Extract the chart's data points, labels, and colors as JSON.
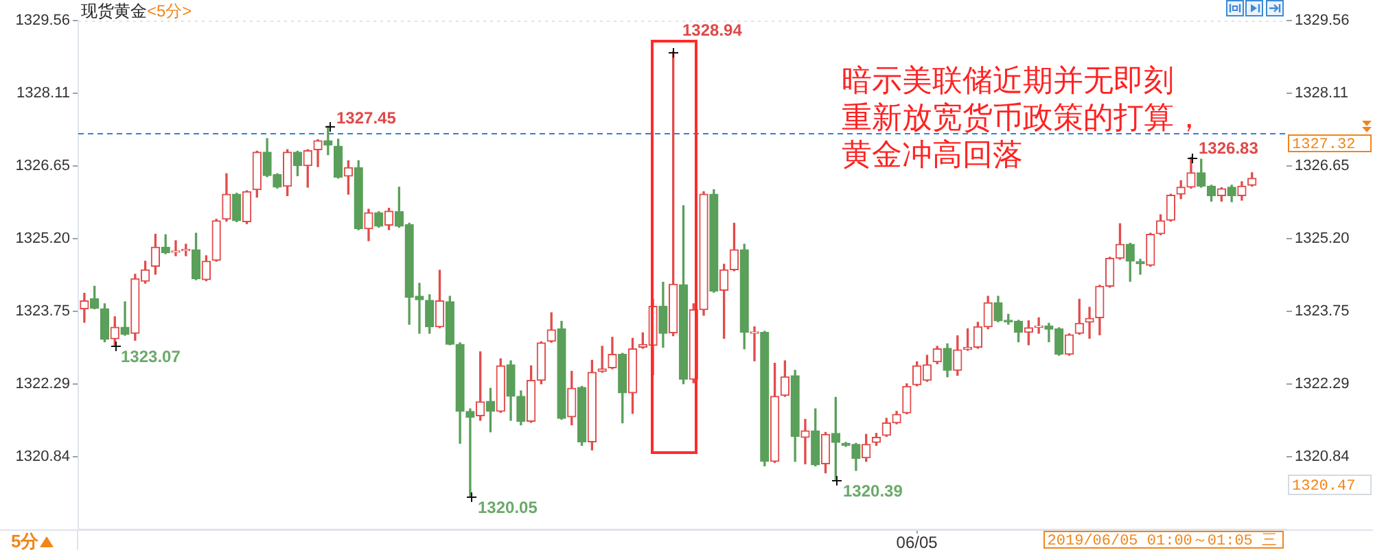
{
  "chart_data": {
    "type": "candlestick",
    "title": "现货黄金",
    "subtitle": "<5分>",
    "categories": [
      null,
      null,
      null,
      null,
      null,
      null,
      null,
      null,
      null,
      null,
      null,
      null,
      null,
      null,
      null,
      null,
      null,
      null,
      null,
      null,
      null,
      null,
      null,
      null,
      null,
      null,
      null,
      null,
      null,
      null,
      null,
      null,
      null,
      null,
      null,
      null,
      null,
      null,
      null,
      null,
      null,
      null,
      null,
      null,
      null,
      null,
      null,
      null,
      null,
      null,
      null,
      null,
      null,
      null,
      null,
      null,
      null,
      null,
      null,
      null,
      null,
      null,
      null,
      null,
      null,
      null,
      null,
      null,
      null,
      null,
      null,
      null,
      null,
      null,
      null,
      null,
      null,
      null,
      null,
      null,
      null,
      null,
      "06/05",
      null,
      null,
      null,
      null,
      null,
      null,
      null,
      null,
      null,
      null,
      null,
      null,
      null,
      null,
      null,
      null,
      null,
      null,
      null,
      null,
      null,
      null,
      null,
      null,
      null,
      null,
      null,
      null,
      null,
      null,
      null,
      null,
      null
    ],
    "ohlc": [
      [
        1323.8,
        1324.11,
        1323.53,
        1323.96
      ],
      [
        1324.0,
        1324.25,
        1323.8,
        1323.81
      ],
      [
        1323.8,
        1323.9,
        1323.14,
        1323.19
      ],
      [
        1323.2,
        1323.64,
        1323.07,
        1323.43
      ],
      [
        1323.43,
        1323.94,
        1323.27,
        1323.29
      ],
      [
        1323.31,
        1324.49,
        1323.17,
        1324.4
      ],
      [
        1324.35,
        1324.75,
        1324.31,
        1324.58
      ],
      [
        1324.65,
        1325.29,
        1324.49,
        1325.03
      ],
      [
        1325.03,
        1325.28,
        1324.9,
        1324.92
      ],
      [
        1324.93,
        1325.16,
        1324.86,
        1324.95
      ],
      [
        1324.96,
        1325.09,
        1324.86,
        1324.98
      ],
      [
        1324.98,
        1325.31,
        1324.38,
        1324.4
      ],
      [
        1324.38,
        1324.86,
        1324.36,
        1324.75
      ],
      [
        1324.77,
        1325.59,
        1324.75,
        1325.56
      ],
      [
        1325.59,
        1326.5,
        1325.55,
        1326.09
      ],
      [
        1326.09,
        1326.11,
        1325.54,
        1325.56
      ],
      [
        1325.54,
        1326.16,
        1325.5,
        1326.14
      ],
      [
        1326.18,
        1326.95,
        1326.03,
        1326.93
      ],
      [
        1326.93,
        1327.2,
        1326.44,
        1326.46
      ],
      [
        1326.48,
        1326.5,
        1326.21,
        1326.23
      ],
      [
        1326.25,
        1326.98,
        1326.06,
        1326.93
      ],
      [
        1326.93,
        1326.95,
        1326.46,
        1326.66
      ],
      [
        1326.66,
        1326.98,
        1326.23,
        1326.96
      ],
      [
        1326.98,
        1327.18,
        1326.64,
        1327.16
      ],
      [
        1327.16,
        1327.45,
        1326.88,
        1327.07
      ],
      [
        1327.05,
        1327.19,
        1326.41,
        1326.43
      ],
      [
        1326.45,
        1326.76,
        1326.09,
        1326.62
      ],
      [
        1326.62,
        1326.76,
        1325.38,
        1325.4
      ],
      [
        1325.4,
        1325.79,
        1325.16,
        1325.72
      ],
      [
        1325.72,
        1325.74,
        1325.43,
        1325.45
      ],
      [
        1325.47,
        1325.81,
        1325.38,
        1325.75
      ],
      [
        1325.74,
        1326.23,
        1325.43,
        1325.45
      ],
      [
        1325.48,
        1325.51,
        1323.49,
        1324.03
      ],
      [
        1324.05,
        1324.31,
        1323.31,
        1323.98
      ],
      [
        1323.97,
        1324.08,
        1323.31,
        1323.44
      ],
      [
        1323.44,
        1324.57,
        1323.42,
        1323.96
      ],
      [
        1323.94,
        1324.05,
        1323.08,
        1323.09
      ],
      [
        1323.09,
        1323.12,
        1321.11,
        1321.75
      ],
      [
        1321.75,
        1321.8,
        1320.05,
        1321.63
      ],
      [
        1321.66,
        1322.94,
        1321.57,
        1321.94
      ],
      [
        1321.95,
        1322.21,
        1321.34,
        1321.75
      ],
      [
        1321.75,
        1322.8,
        1321.73,
        1322.66
      ],
      [
        1322.68,
        1322.76,
        1321.57,
        1322.05
      ],
      [
        1322.05,
        1322.16,
        1321.48,
        1321.55
      ],
      [
        1321.55,
        1322.66,
        1321.53,
        1322.37
      ],
      [
        1322.37,
        1323.14,
        1322.3,
        1323.12
      ],
      [
        1323.15,
        1323.72,
        1323.13,
        1323.38
      ],
      [
        1323.4,
        1323.55,
        1321.59,
        1321.61
      ],
      [
        1321.64,
        1322.55,
        1321.48,
        1322.21
      ],
      [
        1322.23,
        1322.25,
        1321.07,
        1321.14
      ],
      [
        1321.14,
        1322.77,
        1320.98,
        1322.53
      ],
      [
        1322.55,
        1323.05,
        1322.53,
        1322.6
      ],
      [
        1322.62,
        1323.23,
        1322.6,
        1322.89
      ],
      [
        1322.89,
        1322.91,
        1321.52,
        1322.12
      ],
      [
        1322.12,
        1323.21,
        1321.71,
        1323.0
      ],
      [
        1323.03,
        1323.32,
        1323.01,
        1323.09
      ],
      [
        1323.07,
        1323.99,
        1322.48,
        1323.85
      ],
      [
        1323.85,
        1324.33,
        1323.03,
        1323.31
      ],
      [
        1323.32,
        1328.94,
        1323.26,
        1324.29
      ],
      [
        1324.28,
        1325.86,
        1322.3,
        1322.39
      ],
      [
        1322.39,
        1323.9,
        1322.32,
        1323.78
      ],
      [
        1323.78,
        1326.14,
        1323.67,
        1326.09
      ],
      [
        1326.09,
        1326.18,
        1324.13,
        1324.15
      ],
      [
        1324.17,
        1324.69,
        1323.21,
        1324.58
      ],
      [
        1324.58,
        1325.51,
        1324.56,
        1324.98
      ],
      [
        1324.98,
        1325.09,
        1323.0,
        1323.33
      ],
      [
        1323.31,
        1323.44,
        1322.76,
        1323.34
      ],
      [
        1323.33,
        1323.35,
        1320.66,
        1320.75
      ],
      [
        1320.75,
        1322.71,
        1320.73,
        1322.05
      ],
      [
        1322.07,
        1322.76,
        1322.05,
        1322.44
      ],
      [
        1322.46,
        1322.57,
        1320.75,
        1321.25
      ],
      [
        1321.23,
        1321.59,
        1320.7,
        1321.36
      ],
      [
        1321.36,
        1321.8,
        1320.66,
        1320.68
      ],
      [
        1320.7,
        1321.33,
        1320.52,
        1321.29
      ],
      [
        1321.31,
        1322.03,
        1320.39,
        1321.13
      ],
      [
        1321.11,
        1321.13,
        1321.05,
        1321.07
      ],
      [
        1321.09,
        1321.11,
        1320.57,
        1320.81
      ],
      [
        1320.82,
        1321.29,
        1320.75,
        1321.09
      ],
      [
        1321.13,
        1321.31,
        1321.07,
        1321.23
      ],
      [
        1321.27,
        1321.61,
        1321.25,
        1321.52
      ],
      [
        1321.52,
        1321.75,
        1321.5,
        1321.69
      ],
      [
        1321.72,
        1322.3,
        1321.7,
        1322.25
      ],
      [
        1322.28,
        1322.74,
        1322.26,
        1322.66
      ],
      [
        1322.37,
        1322.87,
        1322.35,
        1322.68
      ],
      [
        1322.74,
        1323.05,
        1322.7,
        1323.0
      ],
      [
        1323.01,
        1323.1,
        1322.44,
        1322.57
      ],
      [
        1322.57,
        1323.26,
        1322.47,
        1322.98
      ],
      [
        1322.99,
        1323.4,
        1322.97,
        1323.03
      ],
      [
        1323.03,
        1323.53,
        1323.01,
        1323.44
      ],
      [
        1323.44,
        1324.05,
        1323.4,
        1323.92
      ],
      [
        1323.92,
        1324.05,
        1323.54,
        1323.56
      ],
      [
        1323.57,
        1323.69,
        1323.49,
        1323.54
      ],
      [
        1323.55,
        1323.57,
        1323.14,
        1323.33
      ],
      [
        1323.33,
        1323.56,
        1323.08,
        1323.42
      ],
      [
        1323.43,
        1323.62,
        1323.31,
        1323.45
      ],
      [
        1323.46,
        1323.51,
        1323.14,
        1323.39
      ],
      [
        1323.4,
        1323.42,
        1322.87,
        1322.89
      ],
      [
        1322.89,
        1323.3,
        1322.87,
        1323.28
      ],
      [
        1323.31,
        1323.99,
        1323.29,
        1323.51
      ],
      [
        1323.53,
        1323.83,
        1323.21,
        1323.61
      ],
      [
        1323.62,
        1324.27,
        1323.28,
        1324.25
      ],
      [
        1324.25,
        1324.83,
        1324.23,
        1324.81
      ],
      [
        1324.81,
        1325.5,
        1324.79,
        1325.09
      ],
      [
        1325.09,
        1325.11,
        1324.35,
        1324.75
      ],
      [
        1324.74,
        1324.79,
        1324.49,
        1324.7
      ],
      [
        1324.67,
        1325.31,
        1324.65,
        1325.29
      ],
      [
        1325.3,
        1325.68,
        1325.28,
        1325.56
      ],
      [
        1325.57,
        1326.09,
        1325.55,
        1326.07
      ],
      [
        1326.09,
        1326.36,
        1326.0,
        1326.23
      ],
      [
        1326.23,
        1326.83,
        1326.21,
        1326.52
      ],
      [
        1326.52,
        1326.79,
        1326.23,
        1326.25
      ],
      [
        1326.25,
        1326.27,
        1325.95,
        1326.06
      ],
      [
        1326.06,
        1326.22,
        1325.95,
        1326.2
      ],
      [
        1326.23,
        1326.27,
        1325.94,
        1326.06
      ],
      [
        1326.06,
        1326.34,
        1325.97,
        1326.25
      ],
      [
        1326.27,
        1326.52,
        1326.25,
        1326.41
      ]
    ],
    "colors": [
      "#e24b4b",
      "#5a9f5a",
      "#5a9f5a",
      "#e24b4b",
      "#5a9f5a",
      "#e24b4b",
      "#e24b4b",
      "#e24b4b",
      "#5a9f5a",
      "#e24b4b",
      "#e24b4b",
      "#5a9f5a",
      "#e24b4b",
      "#e24b4b",
      "#e24b4b",
      "#5a9f5a",
      "#e24b4b",
      "#e24b4b",
      "#5a9f5a",
      "#5a9f5a",
      "#e24b4b",
      "#5a9f5a",
      "#e24b4b",
      "#e24b4b",
      "#5a9f5a",
      "#5a9f5a",
      "#e24b4b",
      "#5a9f5a",
      "#e24b4b",
      "#5a9f5a",
      "#e24b4b",
      "#5a9f5a",
      "#5a9f5a",
      "#5a9f5a",
      "#5a9f5a",
      "#e24b4b",
      "#5a9f5a",
      "#5a9f5a",
      "#5a9f5a",
      "#e24b4b",
      "#5a9f5a",
      "#e24b4b",
      "#5a9f5a",
      "#5a9f5a",
      "#e24b4b",
      "#e24b4b",
      "#e24b4b",
      "#5a9f5a",
      "#e24b4b",
      "#5a9f5a",
      "#e24b4b",
      "#e24b4b",
      "#e24b4b",
      "#5a9f5a",
      "#e24b4b",
      "#e24b4b",
      "#e24b4b",
      "#5a9f5a",
      "#e24b4b",
      "#5a9f5a",
      "#e24b4b",
      "#e24b4b",
      "#5a9f5a",
      "#e24b4b",
      "#e24b4b",
      "#5a9f5a",
      "#e24b4b",
      "#5a9f5a",
      "#e24b4b",
      "#e24b4b",
      "#5a9f5a",
      "#e24b4b",
      "#5a9f5a",
      "#e24b4b",
      "#5a9f5a",
      "#5a9f5a",
      "#5a9f5a",
      "#e24b4b",
      "#e24b4b",
      "#e24b4b",
      "#e24b4b",
      "#e24b4b",
      "#e24b4b",
      "#e24b4b",
      "#e24b4b",
      "#5a9f5a",
      "#e24b4b",
      "#e24b4b",
      "#e24b4b",
      "#e24b4b",
      "#5a9f5a",
      "#5a9f5a",
      "#5a9f5a",
      "#e24b4b",
      "#e24b4b",
      "#5a9f5a",
      "#5a9f5a",
      "#e24b4b",
      "#e24b4b",
      "#e24b4b",
      "#e24b4b",
      "#e24b4b",
      "#e24b4b",
      "#5a9f5a",
      "#5a9f5a",
      "#e24b4b",
      "#e24b4b",
      "#e24b4b",
      "#e24b4b",
      "#e24b4b",
      "#5a9f5a",
      "#5a9f5a",
      "#e24b4b",
      "#5a9f5a",
      "#e24b4b",
      "#e24b4b"
    ],
    "ylim": [
      1319.39,
      1329.56
    ],
    "yticks": [
      1320.84,
      1322.29,
      1323.75,
      {
        "value": 1325.2,
        "label": "1325.20"
      },
      1326.65,
      1328.11,
      1329.56
    ],
    "y2lim": [
      1319.39,
      1329.56
    ],
    "y2ticks": [
      1320.84,
      1322.29,
      1323.75,
      {
        "value": 1325.2,
        "label": "1325.20"
      },
      1326.65,
      1328.11,
      1329.56
    ],
    "ref_lines": [
      {
        "axis": "y",
        "value": 1327.32,
        "label": "1327.32",
        "color": "#2f7fe0",
        "line_style": "dashed"
      }
    ],
    "annotations": [
      "1327.45",
      "1323.07",
      "1320.05",
      "1328.94",
      "1320.39",
      "1326.83",
      "暗示美联储近期并无即刻重新放宽货币政策的打算，黄金冲高回落",
      "1320.47",
      "2019/06/05 01:00～01:05 三",
      "5分"
    ]
  }
}
